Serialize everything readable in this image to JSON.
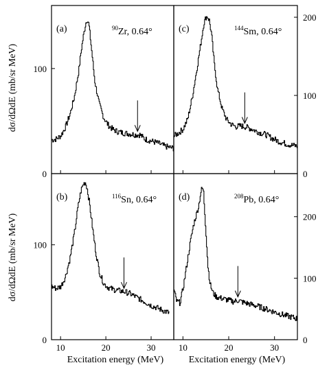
{
  "chart_data": [
    {
      "type": "line",
      "panel": "(a)",
      "nucleus_mass": "90",
      "nucleus_symbol": "Zr",
      "nucleus_angle": ", 0.64°",
      "xlabel": "",
      "ylabel": "dσ/dΩdE (mb/sr MeV)",
      "xlim": [
        8,
        35
      ],
      "ylim": [
        0,
        160
      ],
      "y_ticks": [
        0,
        100
      ],
      "y_tick_labels": [
        "0",
        "100"
      ],
      "x_ticks": [
        10,
        20,
        30
      ],
      "x_tick_labels": [],
      "arrow_x": 27,
      "series": [
        {
          "x": [
            8.0,
            9.0,
            10.0,
            11.0,
            12.0,
            13.0,
            14.0,
            14.5,
            15.0,
            15.5,
            15.8,
            16.2,
            16.8,
            17.5,
            18.5,
            19.5,
            20.5,
            21.5,
            22.5,
            23.5,
            25.0,
            26.5,
            27.5,
            28.5,
            30.0,
            31.5,
            33.0,
            35.0
          ],
          "y": [
            32,
            33,
            36,
            44,
            56,
            73,
            99,
            117,
            131,
            143,
            147,
            142,
            118,
            88,
            66,
            53,
            46,
            42,
            40,
            39,
            38,
            37,
            37,
            33,
            31,
            29,
            26,
            24
          ]
        }
      ]
    },
    {
      "type": "line",
      "panel": "(c)",
      "nucleus_mass": "144",
      "nucleus_symbol": "Sm",
      "nucleus_angle": ", 0.64°",
      "xlabel": "",
      "ylabel": "",
      "xlim": [
        8,
        35
      ],
      "ylim": [
        0,
        215
      ],
      "y_ticks": [
        0,
        100,
        200
      ],
      "y_tick_labels": [
        "0",
        "100",
        "200"
      ],
      "x_ticks": [
        10,
        20,
        30
      ],
      "x_tick_labels": [],
      "arrow_x": 23.5,
      "series": [
        {
          "x": [
            8.0,
            9.0,
            10.0,
            11.0,
            12.0,
            13.0,
            14.0,
            14.5,
            15.0,
            15.3,
            15.7,
            16.2,
            16.8,
            17.5,
            18.5,
            19.5,
            20.5,
            21.5,
            22.5,
            23.5,
            25.0,
            26.5,
            28.0,
            29.5,
            31.0,
            32.5,
            34.0,
            35.0
          ],
          "y": [
            48,
            52,
            57,
            70,
            98,
            134,
            172,
            192,
            200,
            201,
            196,
            178,
            140,
            108,
            83,
            69,
            63,
            60,
            61,
            60,
            57,
            53,
            50,
            45,
            41,
            38,
            36,
            35
          ]
        }
      ]
    },
    {
      "type": "line",
      "panel": "(b)",
      "nucleus_mass": "116",
      "nucleus_symbol": "Sn",
      "nucleus_angle": ", 0.64°",
      "xlabel": "Excitation energy (MeV)",
      "ylabel": "dσ/dΩdE (mb/sr MeV)",
      "xlim": [
        8,
        35
      ],
      "ylim": [
        0,
        175
      ],
      "y_ticks": [
        0,
        100
      ],
      "y_tick_labels": [
        "0",
        "100"
      ],
      "x_ticks": [
        10,
        20,
        30
      ],
      "x_tick_labels": [
        "10",
        "20",
        "30"
      ],
      "arrow_x": 24,
      "series": [
        {
          "x": [
            8.0,
            9.0,
            10.0,
            11.0,
            12.0,
            13.0,
            13.8,
            14.5,
            15.0,
            15.4,
            15.8,
            16.3,
            17.0,
            17.8,
            18.6,
            19.5,
            20.5,
            21.5,
            22.5,
            23.5,
            24.5,
            25.5,
            27.0,
            28.5,
            30.0,
            31.5,
            33.0,
            34.0
          ],
          "y": [
            56,
            54,
            56,
            66,
            85,
            112,
            140,
            158,
            164,
            166,
            160,
            145,
            118,
            90,
            70,
            59,
            55,
            53,
            52,
            51,
            50,
            48,
            44,
            40,
            36,
            33,
            30,
            28
          ]
        }
      ]
    },
    {
      "type": "line",
      "panel": "(d)",
      "nucleus_mass": "208",
      "nucleus_symbol": "Pb",
      "nucleus_angle": ", 0.64°",
      "xlabel": "Excitation energy (MeV)",
      "ylabel": "",
      "xlim": [
        8,
        35
      ],
      "ylim": [
        0,
        270
      ],
      "y_ticks": [
        0,
        100,
        200
      ],
      "y_tick_labels": [
        "0",
        "100",
        "200"
      ],
      "x_ticks": [
        10,
        20,
        30
      ],
      "x_tick_labels": [
        "10",
        "20",
        "30"
      ],
      "arrow_x": 22,
      "series": [
        {
          "x": [
            8.0,
            8.6,
            9.3,
            10.0,
            10.8,
            11.6,
            12.3,
            12.9,
            13.4,
            13.8,
            14.1,
            14.4,
            14.7,
            15.0,
            15.4,
            15.9,
            16.5,
            17.2,
            18.0,
            19.0,
            20.0,
            21.0,
            22.0,
            23.0,
            24.5,
            26.0,
            28.0,
            30.0,
            32.0,
            34.0,
            35.0
          ],
          "y": [
            80,
            62,
            60,
            84,
            122,
            160,
            188,
            204,
            218,
            238,
            246,
            244,
            208,
            172,
            120,
            90,
            76,
            70,
            68,
            66,
            64,
            62,
            64,
            61,
            58,
            55,
            50,
            45,
            40,
            36,
            34
          ]
        }
      ]
    }
  ]
}
